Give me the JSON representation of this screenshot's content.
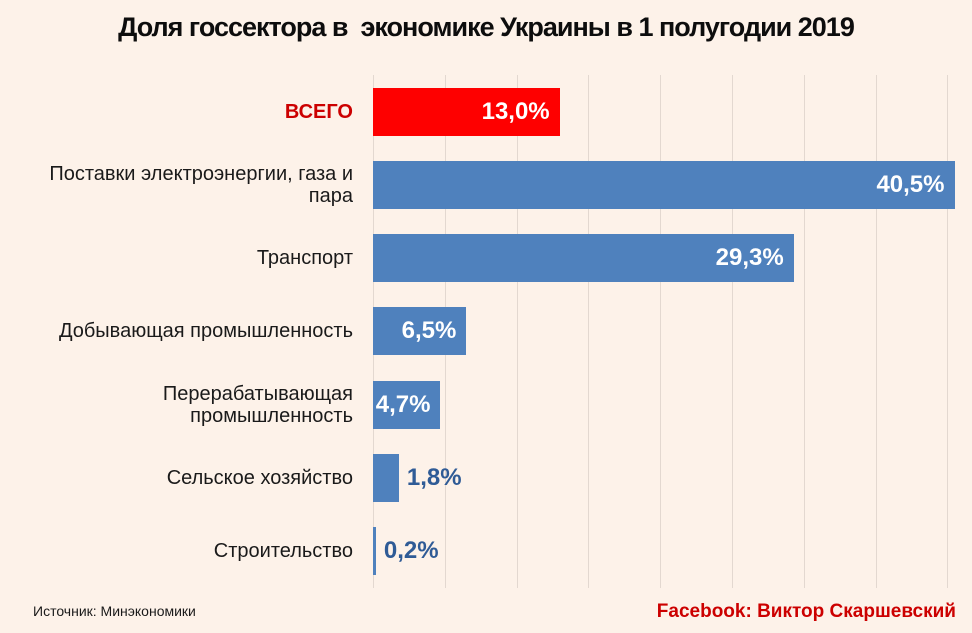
{
  "title": "Доля госсектора в  экономике Украины в 1 полугодии 2019",
  "footer": {
    "source": "Источник: Минэкономики",
    "credit": "Facebook: Виктор Скаршевский"
  },
  "colors": {
    "background": "#fdf2e9",
    "bar_blue": "#4f81bd",
    "bar_red": "#fe0000",
    "text_red": "#cc0000",
    "value_outside_blue": "#2f5b96",
    "gridline": "#e3d8d0",
    "title_text": "#0d0d0d"
  },
  "chart_data": {
    "type": "bar",
    "orientation": "horizontal",
    "title": "Доля госсектора в  экономике Украины в 1 полугодии 2019",
    "xlabel": "",
    "ylabel": "",
    "x_axis_max_percent": 41.3,
    "gridline_step_percent": 5,
    "gridlines_shown": [
      0,
      5,
      10,
      15,
      20,
      25,
      30,
      35,
      40
    ],
    "categories": [
      "ВСЕГО",
      "Поставки электроэнергии, газа и пара",
      "Транспорт",
      "Добывающая промышленность",
      "Перерабатывающая промышленность",
      "Сельское хозяйство",
      "Строительство"
    ],
    "values": [
      13.0,
      40.5,
      29.3,
      6.5,
      4.7,
      1.8,
      0.2
    ],
    "rows": [
      {
        "category": "ВСЕГО",
        "value": 13.0,
        "display": "13,0%",
        "total": true,
        "value_inside": true
      },
      {
        "category": "Поставки электроэнергии, газа и пара",
        "value": 40.5,
        "display": "40,5%",
        "total": false,
        "value_inside": true
      },
      {
        "category": "Транспорт",
        "value": 29.3,
        "display": "29,3%",
        "total": false,
        "value_inside": true
      },
      {
        "category": "Добывающая промышленность",
        "value": 6.5,
        "display": "6,5%",
        "total": false,
        "value_inside": true
      },
      {
        "category": "Перерабатывающая промышленность",
        "value": 4.7,
        "display": "4,7%",
        "total": false,
        "value_inside": true
      },
      {
        "category": "Сельское хозяйство",
        "value": 1.8,
        "display": "1,8%",
        "total": false,
        "value_inside": false
      },
      {
        "category": "Строительство",
        "value": 0.2,
        "display": "0,2%",
        "total": false,
        "value_inside": false
      }
    ]
  }
}
